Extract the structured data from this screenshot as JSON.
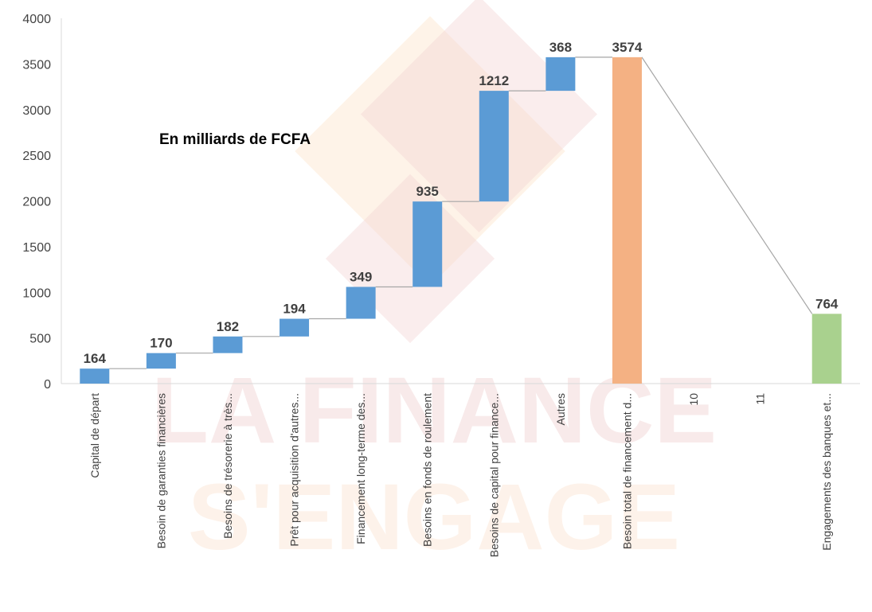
{
  "chart_data": {
    "type": "waterfall",
    "annotation": "En milliards de FCFA",
    "watermark": {
      "line1": "LA FINANCE",
      "line2": "S'ENGAGE"
    },
    "ylim": [
      0,
      4000
    ],
    "y_ticks": [
      "0",
      "500",
      "1000",
      "1500",
      "2000",
      "2500",
      "3000",
      "3500",
      "4000"
    ],
    "y_tick_values": [
      0,
      500,
      1000,
      1500,
      2000,
      2500,
      3000,
      3500,
      4000
    ],
    "colors": {
      "increase": "#5B9BD5",
      "total": "#F4B183",
      "other": "#A9D18E",
      "connector": "#A6A6A6",
      "axis": "#D9D9D9"
    },
    "categories": [
      "Capital de départ",
      "Besoin de garanties financières",
      "Besoins de trésorerie à très...",
      "Prêt pour acquisition d'autres...",
      "Financement long-terme des...",
      "Besoins en fonds de roulement",
      "Besoins de capital pour finance...",
      "Autres",
      "Besoin total de financement d...",
      "10",
      "11",
      "Engagements des banques et..."
    ],
    "values": [
      164,
      170,
      182,
      194,
      349,
      935,
      1212,
      368,
      3574,
      null,
      null,
      764
    ],
    "data_labels": [
      "164",
      "170",
      "182",
      "194",
      "349",
      "935",
      "1212",
      "368",
      "3574",
      "",
      "",
      "764"
    ],
    "kinds": [
      "increase",
      "increase",
      "increase",
      "increase",
      "increase",
      "increase",
      "increase",
      "increase",
      "total",
      "none",
      "none",
      "other"
    ]
  }
}
